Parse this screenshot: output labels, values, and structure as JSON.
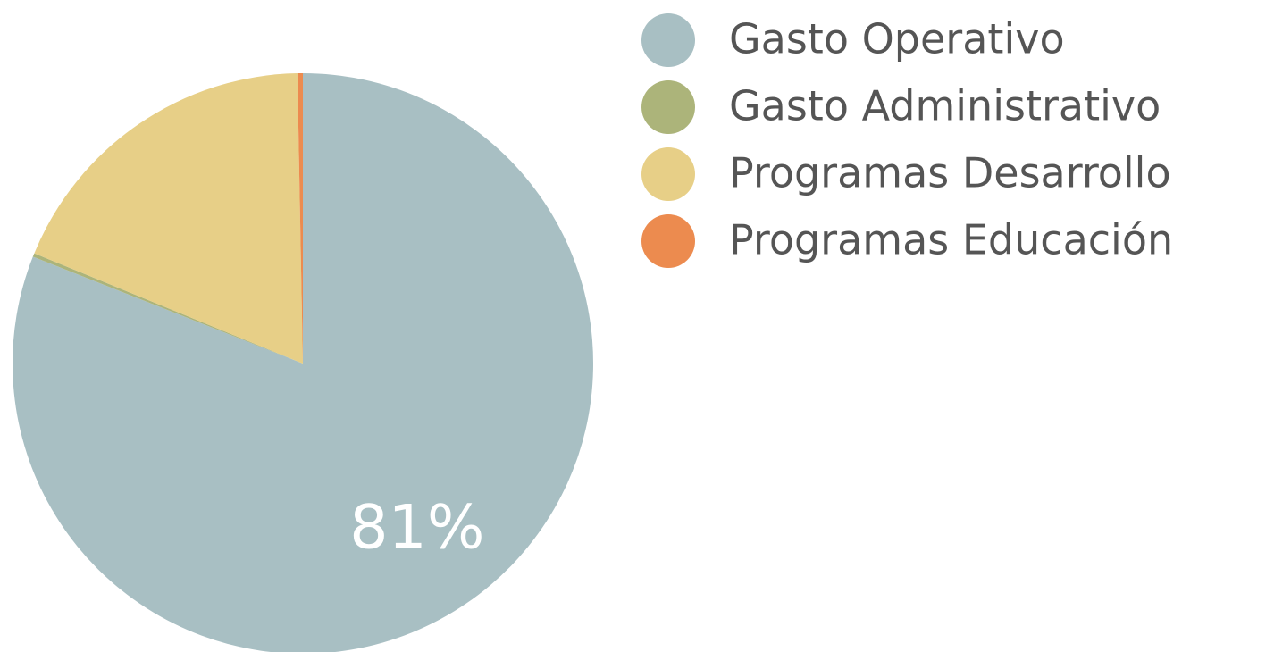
{
  "chart_data": {
    "type": "pie",
    "categories": [
      "Gasto Operativo",
      "Gasto Administrativo",
      "Programas Desarrollo",
      "Programas Educación"
    ],
    "values": [
      81,
      0.2,
      18.5,
      0.3
    ],
    "value_labels": [
      "81%",
      null,
      null,
      null
    ],
    "colors": [
      "#a8bfc3",
      "#acb47a",
      "#e7cf87",
      "#ec8b4f"
    ]
  }
}
